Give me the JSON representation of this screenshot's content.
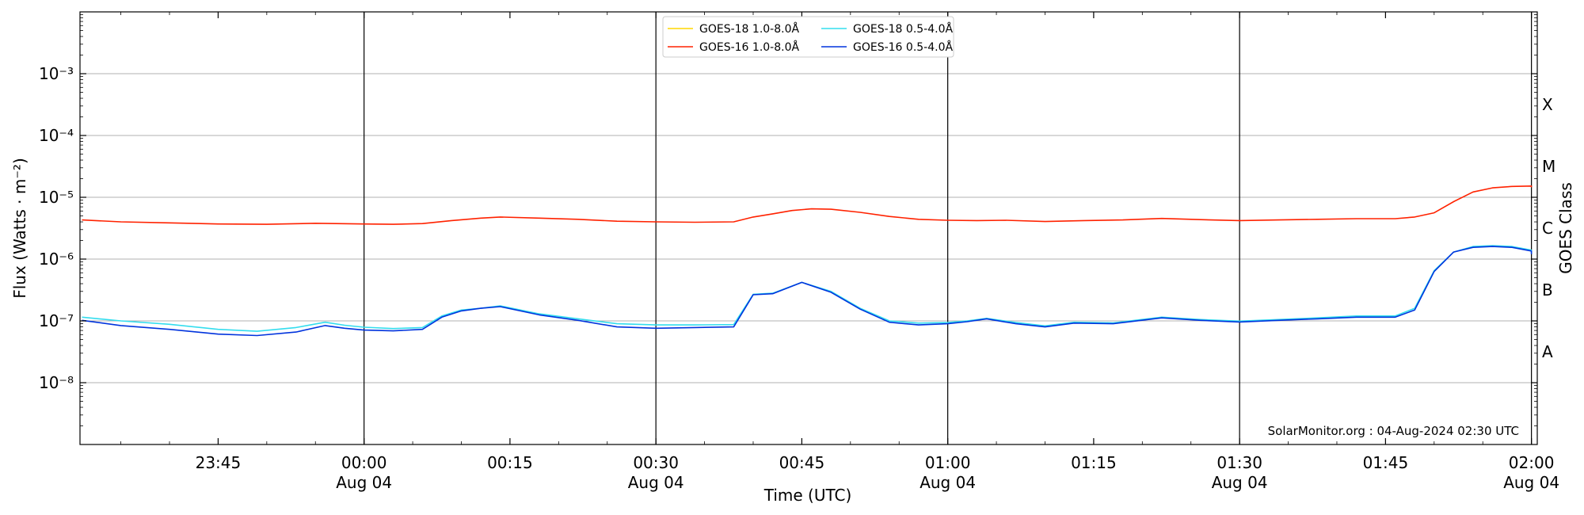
{
  "chart_data": {
    "type": "line",
    "title": "",
    "xlabel": "Time (UTC)",
    "ylabel": "Flux (Watts · m⁻²)",
    "y2label": "GOES Class",
    "yscale": "log",
    "ylim": [
      1e-09,
      0.01
    ],
    "xlim": [
      "2024-08-03 23:30:48",
      "2024-08-04 02:00:36"
    ],
    "grid": "horizontal",
    "legend_position": "top-center",
    "watermark": "SolarMonitor.org : 04-Aug-2024 02:30 UTC",
    "y_ticks": [
      {
        "value": 1e-08,
        "label": "10⁻⁸"
      },
      {
        "value": 1e-07,
        "label": "10⁻⁷"
      },
      {
        "value": 1e-06,
        "label": "10⁻⁶"
      },
      {
        "value": 1e-05,
        "label": "10⁻⁵"
      },
      {
        "value": 0.0001,
        "label": "10⁻⁴"
      },
      {
        "value": 0.001,
        "label": "10⁻³"
      }
    ],
    "x_ticks": [
      {
        "time": "2024-08-03 23:45",
        "label": "23:45",
        "sublabel": ""
      },
      {
        "time": "2024-08-04 00:00",
        "label": "00:00",
        "sublabel": "Aug 04"
      },
      {
        "time": "2024-08-04 00:15",
        "label": "00:15",
        "sublabel": ""
      },
      {
        "time": "2024-08-04 00:30",
        "label": "00:30",
        "sublabel": "Aug 04"
      },
      {
        "time": "2024-08-04 00:45",
        "label": "00:45",
        "sublabel": ""
      },
      {
        "time": "2024-08-04 01:00",
        "label": "01:00",
        "sublabel": "Aug 04"
      },
      {
        "time": "2024-08-04 01:15",
        "label": "01:15",
        "sublabel": ""
      },
      {
        "time": "2024-08-04 01:30",
        "label": "01:30",
        "sublabel": "Aug 04"
      },
      {
        "time": "2024-08-04 01:45",
        "label": "01:45",
        "sublabel": ""
      },
      {
        "time": "2024-08-04 02:00",
        "label": "02:00",
        "sublabel": "Aug 04"
      }
    ],
    "vertical_lines": [
      "2024-08-04 00:00",
      "2024-08-04 00:30",
      "2024-08-04 01:00",
      "2024-08-04 01:30",
      "2024-08-04 02:00"
    ],
    "class_labels": [
      {
        "label": "A",
        "value": 3.16e-08
      },
      {
        "label": "B",
        "value": 3.16e-07
      },
      {
        "label": "C",
        "value": 3.16e-06
      },
      {
        "label": "M",
        "value": 3.16e-05
      },
      {
        "label": "X",
        "value": 0.000316
      }
    ],
    "series": [
      {
        "name": "GOES-18 1.0-8.0Å",
        "color": "#ffd700",
        "x": [],
        "y": []
      },
      {
        "name": "GOES-16 1.0-8.0Å",
        "color": "#ff2200",
        "x": [
          "2024-08-03 23:31",
          "2024-08-03 23:35",
          "2024-08-03 23:40",
          "2024-08-03 23:45",
          "2024-08-03 23:50",
          "2024-08-03 23:55",
          "2024-08-04 00:00",
          "2024-08-04 00:03",
          "2024-08-04 00:06",
          "2024-08-04 00:09",
          "2024-08-04 00:12",
          "2024-08-04 00:14",
          "2024-08-04 00:18",
          "2024-08-04 00:22",
          "2024-08-04 00:26",
          "2024-08-04 00:30",
          "2024-08-04 00:34",
          "2024-08-04 00:38",
          "2024-08-04 00:40",
          "2024-08-04 00:42",
          "2024-08-04 00:44",
          "2024-08-04 00:46",
          "2024-08-04 00:48",
          "2024-08-04 00:51",
          "2024-08-04 00:54",
          "2024-08-04 00:57",
          "2024-08-04 01:00",
          "2024-08-04 01:03",
          "2024-08-04 01:06",
          "2024-08-04 01:10",
          "2024-08-04 01:14",
          "2024-08-04 01:18",
          "2024-08-04 01:22",
          "2024-08-04 01:26",
          "2024-08-04 01:30",
          "2024-08-04 01:34",
          "2024-08-04 01:38",
          "2024-08-04 01:42",
          "2024-08-04 01:46",
          "2024-08-04 01:48",
          "2024-08-04 01:50",
          "2024-08-04 01:52",
          "2024-08-04 01:54",
          "2024-08-04 01:56",
          "2024-08-04 01:58",
          "2024-08-04 02:00",
          "2024-08-04 02:00"
        ],
        "y": [
          4.3e-06,
          4e-06,
          3.85e-06,
          3.7e-06,
          3.65e-06,
          3.8e-06,
          3.7e-06,
          3.65e-06,
          3.75e-06,
          4.2e-06,
          4.6e-06,
          4.8e-06,
          4.6e-06,
          4.4e-06,
          4.1e-06,
          4e-06,
          3.95e-06,
          4e-06,
          4.8e-06,
          5.4e-06,
          6.1e-06,
          6.5e-06,
          6.4e-06,
          5.7e-06,
          4.9e-06,
          4.4e-06,
          4.25e-06,
          4.2e-06,
          4.25e-06,
          4.05e-06,
          4.2e-06,
          4.3e-06,
          4.55e-06,
          4.35e-06,
          4.2e-06,
          4.3e-06,
          4.4e-06,
          4.5e-06,
          4.5e-06,
          4.8e-06,
          5.6e-06,
          8.5e-06,
          1.22e-05,
          1.42e-05,
          1.5e-05,
          1.52e-05,
          1.45e-05
        ]
      },
      {
        "name": "GOES-18 0.5-4.0Å",
        "color": "#33ddee",
        "x": [
          "2024-08-03 23:31",
          "2024-08-03 23:35",
          "2024-08-03 23:40",
          "2024-08-03 23:45",
          "2024-08-03 23:49",
          "2024-08-03 23:53",
          "2024-08-03 23:56",
          "2024-08-03 23:58",
          "2024-08-04 00:00",
          "2024-08-04 00:03",
          "2024-08-04 00:06",
          "2024-08-04 00:08",
          "2024-08-04 00:10",
          "2024-08-04 00:12",
          "2024-08-04 00:14",
          "2024-08-04 00:18",
          "2024-08-04 00:22",
          "2024-08-04 00:26",
          "2024-08-04 00:30",
          "2024-08-04 00:34",
          "2024-08-04 00:38",
          "2024-08-04 00:40",
          "2024-08-04 00:42",
          "2024-08-04 00:45",
          "2024-08-04 00:48",
          "2024-08-04 00:51",
          "2024-08-04 00:54",
          "2024-08-04 00:57",
          "2024-08-04 01:00",
          "2024-08-04 01:02",
          "2024-08-04 01:04",
          "2024-08-04 01:07",
          "2024-08-04 01:10",
          "2024-08-04 01:13",
          "2024-08-04 01:17",
          "2024-08-04 01:22",
          "2024-08-04 01:26",
          "2024-08-04 01:30",
          "2024-08-04 01:34",
          "2024-08-04 01:38",
          "2024-08-04 01:42",
          "2024-08-04 01:46",
          "2024-08-04 01:48",
          "2024-08-04 01:50",
          "2024-08-04 01:52",
          "2024-08-04 01:54",
          "2024-08-04 01:56",
          "2024-08-04 01:58",
          "2024-08-04 02:00",
          "2024-08-04 02:00"
        ],
        "y": [
          1.15e-07,
          1e-07,
          8.8e-08,
          7.3e-08,
          6.8e-08,
          7.8e-08,
          9.5e-08,
          8.5e-08,
          7.9e-08,
          7.5e-08,
          7.8e-08,
          1.2e-07,
          1.5e-07,
          1.6e-07,
          1.75e-07,
          1.3e-07,
          1.08e-07,
          9e-08,
          8.6e-08,
          8.6e-08,
          8.7e-08,
          2.7e-07,
          2.8e-07,
          4.2e-07,
          3e-07,
          1.6e-07,
          1e-07,
          9.2e-08,
          9.4e-08,
          1e-07,
          1.1e-07,
          9.4e-08,
          8.3e-08,
          9.5e-08,
          9.3e-08,
          1.15e-07,
          1.05e-07,
          9.9e-08,
          1.05e-07,
          1.12e-07,
          1.2e-07,
          1.2e-07,
          1.6e-07,
          6.5e-07,
          1.3e-06,
          1.6e-06,
          1.65e-06,
          1.6e-06,
          1.4e-06,
          1.25e-06
        ]
      },
      {
        "name": "GOES-16 0.5-4.0Å",
        "color": "#0033dd",
        "x": [
          "2024-08-03 23:31",
          "2024-08-03 23:35",
          "2024-08-03 23:40",
          "2024-08-03 23:45",
          "2024-08-03 23:49",
          "2024-08-03 23:53",
          "2024-08-03 23:56",
          "2024-08-03 23:58",
          "2024-08-04 00:00",
          "2024-08-04 00:03",
          "2024-08-04 00:06",
          "2024-08-04 00:08",
          "2024-08-04 00:10",
          "2024-08-04 00:12",
          "2024-08-04 00:14",
          "2024-08-04 00:18",
          "2024-08-04 00:22",
          "2024-08-04 00:26",
          "2024-08-04 00:30",
          "2024-08-04 00:34",
          "2024-08-04 00:38",
          "2024-08-04 00:40",
          "2024-08-04 00:42",
          "2024-08-04 00:45",
          "2024-08-04 00:48",
          "2024-08-04 00:51",
          "2024-08-04 00:54",
          "2024-08-04 00:57",
          "2024-08-04 01:00",
          "2024-08-04 01:02",
          "2024-08-04 01:04",
          "2024-08-04 01:07",
          "2024-08-04 01:10",
          "2024-08-04 01:13",
          "2024-08-04 01:17",
          "2024-08-04 01:22",
          "2024-08-04 01:26",
          "2024-08-04 01:30",
          "2024-08-04 01:34",
          "2024-08-04 01:38",
          "2024-08-04 01:42",
          "2024-08-04 01:46",
          "2024-08-04 01:48",
          "2024-08-04 01:50",
          "2024-08-04 01:52",
          "2024-08-04 01:54",
          "2024-08-04 01:56",
          "2024-08-04 01:58",
          "2024-08-04 02:00",
          "2024-08-04 02:00"
        ],
        "y": [
          1.02e-07,
          8.4e-08,
          7.3e-08,
          6.1e-08,
          5.8e-08,
          6.6e-08,
          8.4e-08,
          7.6e-08,
          7.1e-08,
          6.9e-08,
          7.3e-08,
          1.15e-07,
          1.45e-07,
          1.6e-07,
          1.7e-07,
          1.25e-07,
          1.02e-07,
          8e-08,
          7.6e-08,
          7.8e-08,
          8e-08,
          2.65e-07,
          2.75e-07,
          4.2e-07,
          2.9e-07,
          1.55e-07,
          9.5e-08,
          8.6e-08,
          9e-08,
          9.7e-08,
          1.08e-07,
          9e-08,
          8e-08,
          9.2e-08,
          9e-08,
          1.12e-07,
          1.02e-07,
          9.6e-08,
          1.02e-07,
          1.08e-07,
          1.15e-07,
          1.15e-07,
          1.5e-07,
          6.3e-07,
          1.3e-06,
          1.55e-06,
          1.6e-06,
          1.55e-06,
          1.35e-06,
          1.2e-06
        ]
      }
    ]
  }
}
